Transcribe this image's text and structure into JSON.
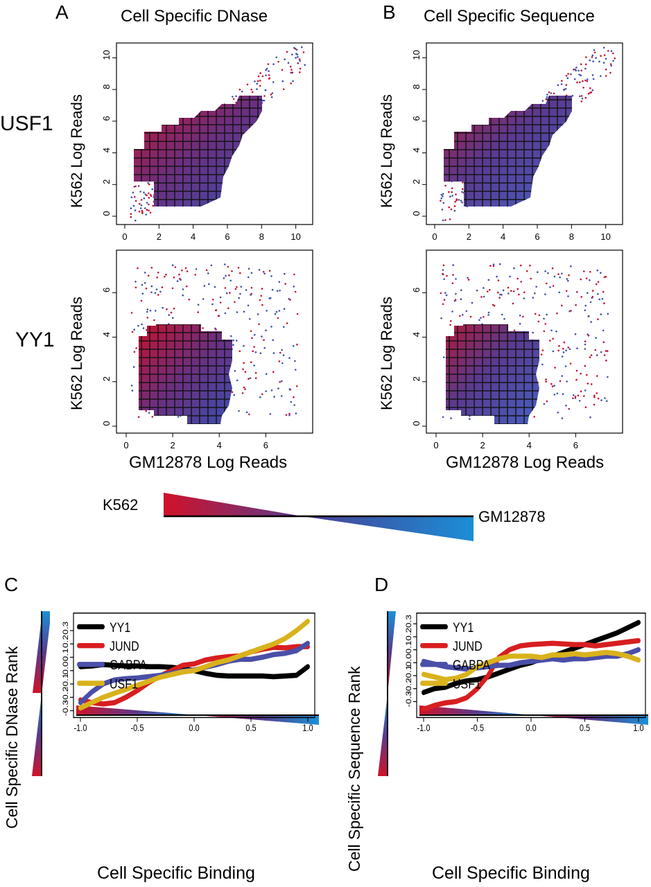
{
  "panel_letters": {
    "a": "A",
    "b": "B",
    "c": "C",
    "d": "D"
  },
  "column_titles": {
    "a": "Cell Specific DNase",
    "b": "Cell Specific Sequence"
  },
  "row_labels": {
    "top": "USF1",
    "bottom": "YY1"
  },
  "scatter": {
    "ylabel": "K562 Log Reads",
    "xlabel": "GM12878 Log Reads",
    "usf1_ticks": [
      "0",
      "2",
      "4",
      "6",
      "8",
      "10"
    ],
    "yy1_xticks": [
      "0",
      "2",
      "4",
      "6"
    ],
    "yy1_yticks": [
      "0",
      "2",
      "4",
      "6"
    ]
  },
  "gradient_legend": {
    "left": "K562",
    "right": "GM12878"
  },
  "colors": {
    "k562": "#d0122a",
    "mid": "#7a3a8a",
    "gm12878": "#1a8fd6",
    "yy1": "#000000",
    "jund": "#d81e20",
    "gabpa": "#4a4fa8",
    "usf1": "#d9b21c"
  },
  "chart_data": [
    {
      "type": "line",
      "panel": "C",
      "title": "",
      "xlabel": "Cell Specific Binding",
      "ylabel": "Cell Specific DNase Rank",
      "xlim": [
        -1.0,
        1.0
      ],
      "ylim": [
        -0.3,
        0.38
      ],
      "xticks": [
        "-1.0",
        "-0.5",
        "0.0",
        "0.5",
        "1.0"
      ],
      "yticks": [
        "-0.3",
        "-0.2",
        "-0.1",
        "0.0",
        "0.1",
        "0.2",
        "0.3"
      ],
      "legend": "top-left",
      "x": [
        -1.0,
        -0.9,
        -0.8,
        -0.7,
        -0.6,
        -0.5,
        -0.4,
        -0.3,
        -0.2,
        -0.1,
        0.0,
        0.1,
        0.2,
        0.3,
        0.4,
        0.5,
        0.6,
        0.7,
        0.8,
        0.9,
        1.0
      ],
      "series": [
        {
          "name": "YY1",
          "color": "#000000",
          "values": [
            0.03,
            0.035,
            0.045,
            0.04,
            0.035,
            0.035,
            0.03,
            0.03,
            0.025,
            0.015,
            0.0,
            -0.02,
            -0.035,
            -0.04,
            -0.04,
            -0.04,
            -0.04,
            -0.045,
            -0.04,
            -0.035,
            0.03
          ]
        },
        {
          "name": "JUND",
          "color": "#d81e20",
          "values": [
            -0.22,
            -0.24,
            -0.25,
            -0.24,
            -0.2,
            -0.15,
            -0.09,
            -0.04,
            0.0,
            0.04,
            0.05,
            0.08,
            0.095,
            0.105,
            0.11,
            0.14,
            0.16,
            0.175,
            0.17,
            0.18,
            0.18
          ]
        },
        {
          "name": "GABPA",
          "color": "#4a4fa8",
          "values": [
            -0.24,
            -0.16,
            -0.1,
            -0.07,
            -0.06,
            -0.055,
            -0.045,
            -0.035,
            -0.02,
            -0.005,
            0.005,
            0.025,
            0.045,
            0.07,
            0.085,
            0.085,
            0.1,
            0.12,
            0.13,
            0.15,
            0.205
          ]
        },
        {
          "name": "USF1",
          "color": "#d9b21c",
          "values": [
            -0.28,
            -0.24,
            -0.2,
            -0.17,
            -0.14,
            -0.11,
            -0.08,
            -0.05,
            -0.03,
            -0.01,
            0.0,
            0.03,
            0.06,
            0.08,
            0.11,
            0.14,
            0.17,
            0.2,
            0.24,
            0.3,
            0.37
          ]
        }
      ]
    },
    {
      "type": "line",
      "panel": "D",
      "title": "",
      "xlabel": "Cell Specific Binding",
      "ylabel": "Cell Specific Sequence Rank",
      "xlim": [
        -1.0,
        1.0
      ],
      "ylim": [
        -0.37,
        0.33
      ],
      "xticks": [
        "-1.0",
        "-0.5",
        "0.0",
        "0.5",
        "1.0"
      ],
      "yticks": [
        "-0.3",
        "-0.2",
        "-0.1",
        "0.0",
        "0.1",
        "0.2",
        "0.3"
      ],
      "legend": "top-left",
      "x": [
        -1.0,
        -0.9,
        -0.8,
        -0.7,
        -0.6,
        -0.5,
        -0.4,
        -0.3,
        -0.2,
        -0.1,
        0.0,
        0.1,
        0.2,
        0.3,
        0.4,
        0.5,
        0.6,
        0.7,
        0.8,
        0.9,
        1.0
      ],
      "series": [
        {
          "name": "YY1",
          "color": "#000000",
          "values": [
            -0.23,
            -0.2,
            -0.19,
            -0.16,
            -0.14,
            -0.13,
            -0.11,
            -0.08,
            -0.05,
            -0.02,
            0.0,
            0.03,
            0.05,
            0.08,
            0.11,
            0.14,
            0.17,
            0.2,
            0.23,
            0.27,
            0.31
          ]
        },
        {
          "name": "JUND",
          "color": "#d81e20",
          "values": [
            -0.36,
            -0.33,
            -0.31,
            -0.3,
            -0.27,
            -0.2,
            -0.1,
            0.04,
            0.1,
            0.13,
            0.14,
            0.145,
            0.15,
            0.145,
            0.14,
            0.14,
            0.13,
            0.14,
            0.15,
            0.16,
            0.17
          ]
        },
        {
          "name": "GABPA",
          "color": "#4a4fa8",
          "values": [
            0.01,
            -0.01,
            -0.03,
            -0.04,
            -0.05,
            -0.04,
            -0.03,
            -0.02,
            -0.02,
            0.0,
            0.01,
            0.02,
            0.03,
            0.02,
            0.03,
            0.03,
            0.04,
            0.05,
            0.05,
            0.07,
            0.1
          ]
        },
        {
          "name": "USF1",
          "color": "#d9b21c",
          "values": [
            -0.09,
            -0.11,
            -0.13,
            -0.12,
            -0.09,
            -0.03,
            0.0,
            0.03,
            0.05,
            0.05,
            0.05,
            0.04,
            0.06,
            0.06,
            0.07,
            0.06,
            0.07,
            0.08,
            0.07,
            0.05,
            0.02
          ]
        }
      ]
    }
  ]
}
